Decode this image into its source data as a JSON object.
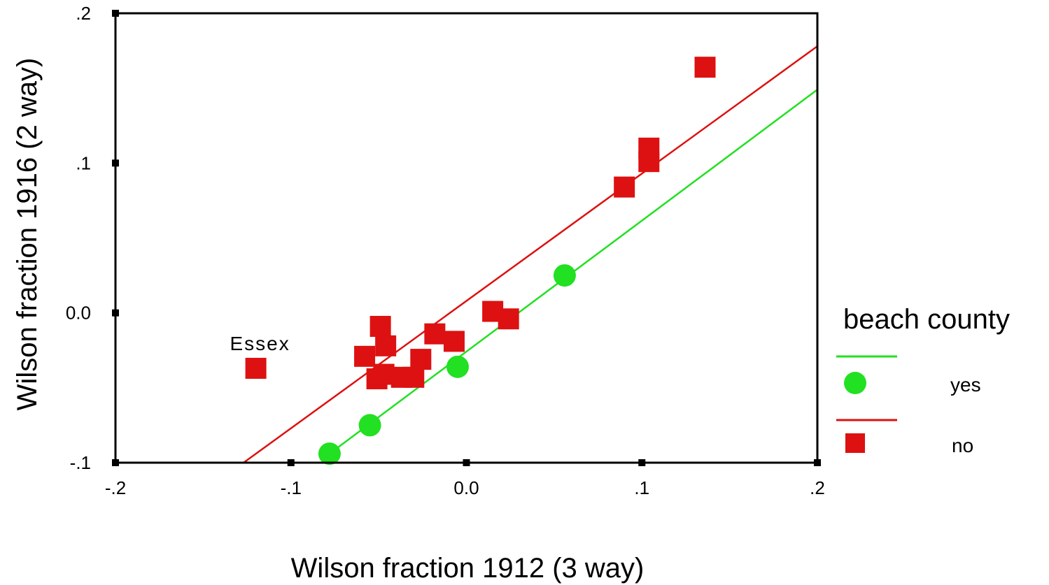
{
  "chart_data": {
    "type": "scatter",
    "xlabel": "Wilson fraction 1912 (3 way)",
    "ylabel": "Wilson fraction 1916 (2 way)",
    "xlim": [
      -0.2,
      0.2
    ],
    "ylim": [
      -0.1,
      0.2
    ],
    "x_ticks": [
      -0.2,
      -0.1,
      0.0,
      0.1,
      0.2
    ],
    "x_tick_labels": [
      "-.2",
      "-.1",
      "0.0",
      ".1",
      ".2"
    ],
    "y_ticks": [
      -0.1,
      0.0,
      0.1,
      0.2
    ],
    "y_tick_labels": [
      "-.1",
      "0.0",
      ".1",
      ".2"
    ],
    "grid": false,
    "legend": {
      "title": "beach county",
      "position": "right"
    },
    "series": [
      {
        "name": "yes",
        "marker": "circle",
        "color": "#22e022",
        "points": [
          {
            "x": -0.078,
            "y": -0.094
          },
          {
            "x": -0.055,
            "y": -0.075
          },
          {
            "x": -0.005,
            "y": -0.036
          },
          {
            "x": 0.056,
            "y": 0.025
          }
        ],
        "fit_line": {
          "x": [
            -0.078,
            0.2
          ],
          "y": [
            -0.094,
            0.149
          ]
        }
      },
      {
        "name": "no",
        "marker": "square",
        "color": "#dd1111",
        "points": [
          {
            "x": -0.12,
            "y": -0.037
          },
          {
            "x": -0.058,
            "y": -0.029
          },
          {
            "x": -0.049,
            "y": -0.009
          },
          {
            "x": -0.046,
            "y": -0.022
          },
          {
            "x": -0.051,
            "y": -0.044
          },
          {
            "x": -0.047,
            "y": -0.041
          },
          {
            "x": -0.037,
            "y": -0.043
          },
          {
            "x": -0.03,
            "y": -0.043
          },
          {
            "x": -0.026,
            "y": -0.031
          },
          {
            "x": -0.018,
            "y": -0.014
          },
          {
            "x": -0.007,
            "y": -0.019
          },
          {
            "x": 0.015,
            "y": 0.001
          },
          {
            "x": 0.024,
            "y": -0.004
          },
          {
            "x": 0.09,
            "y": 0.084
          },
          {
            "x": 0.104,
            "y": 0.101
          },
          {
            "x": 0.104,
            "y": 0.11
          },
          {
            "x": 0.136,
            "y": 0.164
          }
        ],
        "fit_line": {
          "x": [
            -0.127,
            0.2
          ],
          "y": [
            -0.1,
            0.178
          ]
        }
      }
    ],
    "annotations": [
      {
        "text": "Essex",
        "x": -0.12,
        "y": -0.037
      }
    ]
  }
}
